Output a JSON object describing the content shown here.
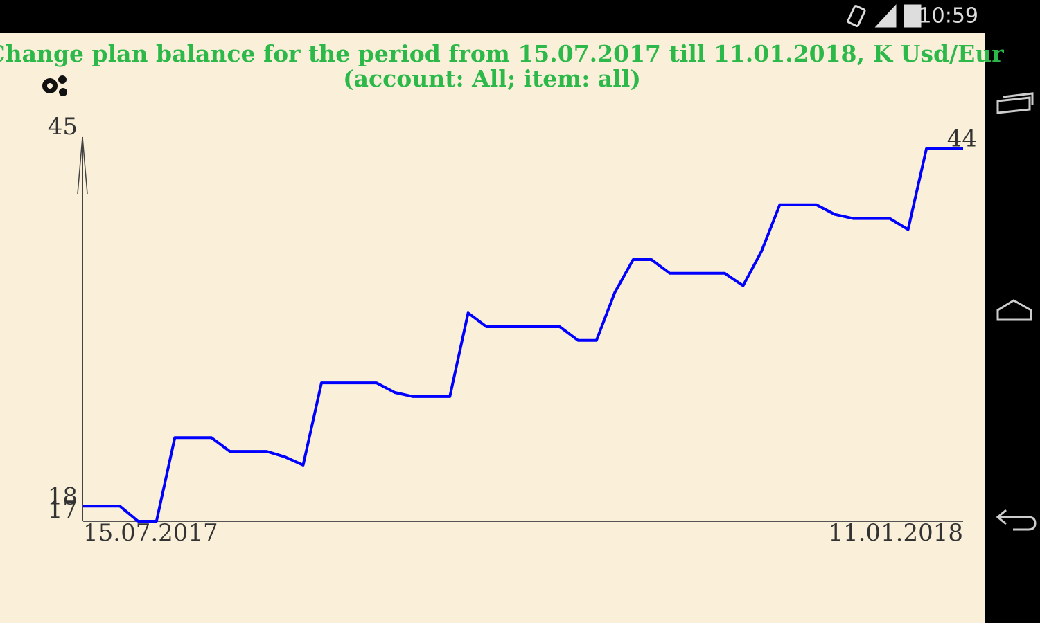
{
  "status_bar": {
    "time": "10:59"
  },
  "chart_data": {
    "type": "line",
    "title": "Change  plan balance for the period from 15.07.2017 till 11.01.2018, K Usd/Eur",
    "subtitle": "(account: All; item: all)",
    "categories": [
      "15.07.2017",
      null,
      null,
      null,
      null,
      null,
      null,
      null,
      null,
      null,
      null,
      null,
      null,
      null,
      null,
      null,
      null,
      null,
      null,
      null,
      null,
      null,
      null,
      null,
      null,
      null,
      null,
      null,
      null,
      null,
      null,
      null,
      null,
      null,
      null,
      null,
      null,
      null,
      null,
      null,
      null,
      null,
      null,
      null,
      null,
      null,
      null,
      null,
      "11.01.2018"
    ],
    "series": [
      {
        "name": "balance",
        "color": "#0000ff",
        "values": [
          17.4,
          17.4,
          17.4,
          16.3,
          16.3,
          22.4,
          22.4,
          22.4,
          21.4,
          21.4,
          21.4,
          21,
          20.4,
          26.4,
          26.4,
          26.4,
          26.4,
          25.7,
          25.4,
          25.4,
          25.4,
          31.5,
          30.5,
          30.5,
          30.5,
          30.5,
          30.5,
          29.5,
          29.5,
          33,
          35.4,
          35.4,
          34.4,
          34.4,
          34.4,
          34.4,
          33.5,
          36,
          39.4,
          39.4,
          39.4,
          38.7,
          38.4,
          38.4,
          38.4,
          37.6,
          43.5,
          43.5,
          43.5
        ]
      }
    ],
    "end_label": "44",
    "ylim": [
      16.3,
      45
    ],
    "yticks": [
      17,
      18,
      45
    ]
  }
}
